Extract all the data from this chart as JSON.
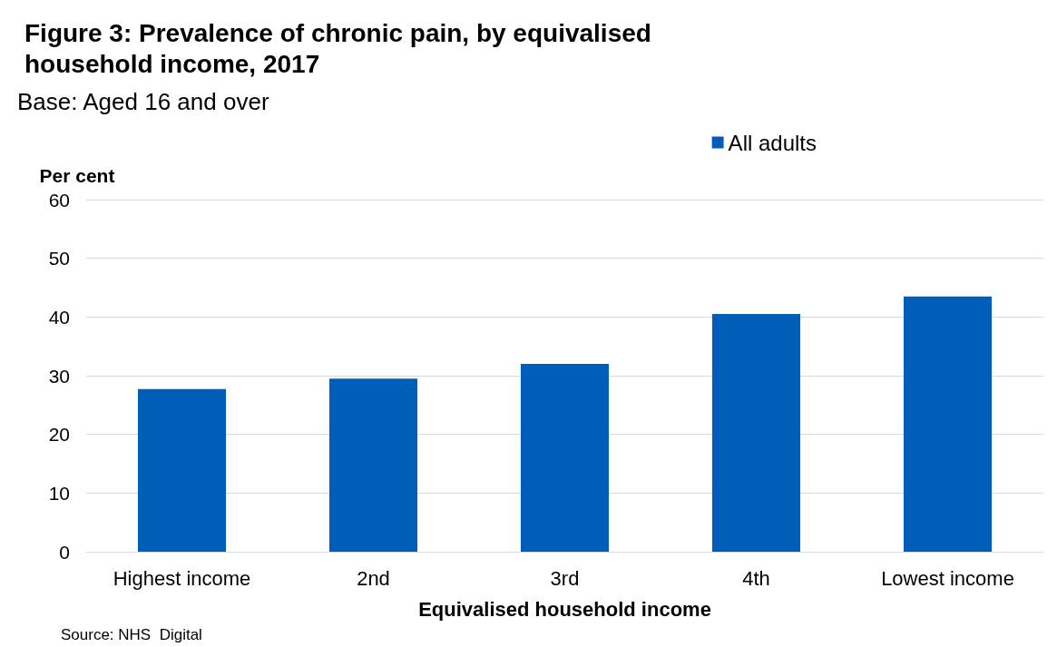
{
  "chart_data": {
    "type": "bar",
    "title": "Figure 3: Prevalence of chronic pain, by equivalised\nhousehold income, 2017",
    "subtitle": "Base: Aged 16 and over",
    "xlabel": "Equivalised household income",
    "ylabel": "Per cent",
    "categories": [
      "Highest income",
      "2nd",
      "3rd",
      "4th",
      "Lowest income"
    ],
    "series": [
      {
        "name": "All adults",
        "color": "#005eb8",
        "values": [
          27.7,
          29.5,
          32.0,
          40.5,
          43.5
        ]
      }
    ],
    "ylim": [
      0,
      60
    ],
    "yticks": [
      0,
      10,
      20,
      30,
      40,
      50,
      60
    ],
    "grid": "y",
    "legend": "top right",
    "annotations": [
      "Source: NHS  Digital"
    ]
  }
}
